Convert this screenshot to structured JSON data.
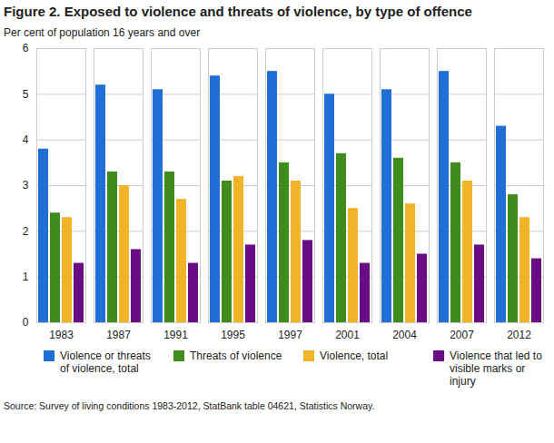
{
  "chart_data": {
    "type": "bar",
    "title": "Figure 2. Exposed to violence and threats of violence, by type of offence",
    "subtitle": "Per cent of population 16 years and over",
    "caption": "Source: Survey of living conditions 1983-2012, StatBank table 04621, Statistics Norway.",
    "categories": [
      "1983",
      "1987",
      "1991",
      "1995",
      "1997",
      "2001",
      "2004",
      "2007",
      "2012"
    ],
    "series": [
      {
        "name": "Violence or threats of violence, total",
        "color": "#1f6fd6",
        "values": [
          3.8,
          5.2,
          5.1,
          5.4,
          5.5,
          5.0,
          5.1,
          5.5,
          4.3
        ]
      },
      {
        "name": "Threats of violence",
        "color": "#3d8c1c",
        "values": [
          2.4,
          3.3,
          3.3,
          3.1,
          3.5,
          3.7,
          3.6,
          3.5,
          2.8
        ]
      },
      {
        "name": "Violence, total",
        "color": "#f0b429",
        "values": [
          2.3,
          3.0,
          2.7,
          3.2,
          3.1,
          2.5,
          2.6,
          3.1,
          2.3
        ]
      },
      {
        "name": "Violence that led to visible marks or injury",
        "color": "#6a0d84",
        "values": [
          1.3,
          1.6,
          1.3,
          1.7,
          1.8,
          1.3,
          1.5,
          1.7,
          1.4
        ]
      }
    ],
    "ylim": [
      0,
      6
    ],
    "yticks": [
      0,
      1,
      2,
      3,
      4,
      5,
      6
    ],
    "grid": true,
    "legend": "bottom"
  }
}
